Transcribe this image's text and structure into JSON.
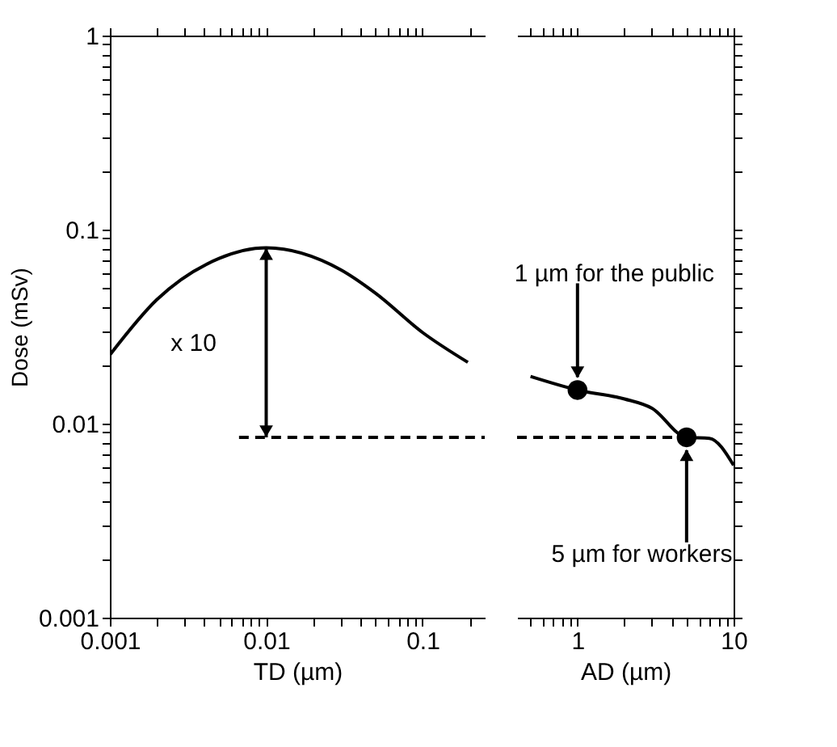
{
  "chart_data": [
    {
      "type": "line",
      "xlabel": "TD (µm)",
      "ylabel": "Dose (mSv)",
      "log": "xy",
      "xlim": [
        0.001,
        0.25
      ],
      "ylim": [
        0.001,
        1
      ],
      "xticks": [
        0.001,
        {
          "value": 0.002,
          "label": null
        },
        {
          "value": 0.003,
          "label": null
        },
        {
          "value": 0.004,
          "label": null
        },
        {
          "value": 0.005,
          "label": null
        },
        {
          "value": 0.006,
          "label": null
        },
        {
          "value": 0.007,
          "label": null
        },
        {
          "value": 0.008,
          "label": null
        },
        {
          "value": 0.009,
          "label": null
        },
        0.01,
        {
          "value": 0.02,
          "label": null
        },
        {
          "value": 0.03,
          "label": null
        },
        {
          "value": 0.04,
          "label": null
        },
        {
          "value": 0.05,
          "label": null
        },
        {
          "value": 0.06,
          "label": null
        },
        {
          "value": 0.07,
          "label": null
        },
        {
          "value": 0.08,
          "label": null
        },
        {
          "value": 0.09,
          "label": null
        },
        0.1,
        {
          "value": 0.2,
          "label": null
        }
      ],
      "yticks": [
        0.001,
        {
          "value": 0.002,
          "label": null
        },
        {
          "value": 0.003,
          "label": null
        },
        {
          "value": 0.004,
          "label": null
        },
        {
          "value": 0.005,
          "label": null
        },
        {
          "value": 0.006,
          "label": null
        },
        {
          "value": 0.007,
          "label": null
        },
        {
          "value": 0.008,
          "label": null
        },
        {
          "value": 0.009,
          "label": null
        },
        0.01,
        {
          "value": 0.02,
          "label": null
        },
        {
          "value": 0.03,
          "label": null
        },
        {
          "value": 0.04,
          "label": null
        },
        {
          "value": 0.05,
          "label": null
        },
        {
          "value": 0.06,
          "label": null
        },
        {
          "value": 0.07,
          "label": null
        },
        {
          "value": 0.08,
          "label": null
        },
        {
          "value": 0.09,
          "label": null
        },
        0.1,
        {
          "value": 0.2,
          "label": null
        },
        {
          "value": 0.3,
          "label": null
        },
        {
          "value": 0.4,
          "label": null
        },
        {
          "value": 0.5,
          "label": null
        },
        {
          "value": 0.6,
          "label": null
        },
        {
          "value": 0.7,
          "label": null
        },
        {
          "value": 0.8,
          "label": null
        },
        {
          "value": 0.9,
          "label": null
        },
        1
      ],
      "series": [
        {
          "color": "#000000",
          "line_style": "solid",
          "x": [
            0.001,
            0.002,
            0.005,
            0.01,
            0.03,
            0.05,
            0.1,
            0.195
          ],
          "values": [
            0.0226,
            0.0436,
            0.071,
            0.0805,
            0.062,
            0.047,
            0.0295,
            0.0207
          ]
        },
        {
          "color": "#000000",
          "line_style": "dashed",
          "x": [
            0.0067,
            0.25
          ],
          "values": [
            0.0085,
            0.0085
          ]
        }
      ],
      "annotations": [
        "x 10"
      ]
    },
    {
      "type": "line",
      "xlabel": "AD (µm)",
      "log": "xy",
      "tick_labels": "x",
      "xlim": [
        0.41,
        10
      ],
      "ylim": [
        0.001,
        1
      ],
      "xticks": [
        {
          "value": 0.5,
          "label": null
        },
        {
          "value": 0.6,
          "label": null
        },
        {
          "value": 0.7,
          "label": null
        },
        {
          "value": 0.8,
          "label": null
        },
        {
          "value": 0.9,
          "label": null
        },
        1,
        {
          "value": 2,
          "label": null
        },
        {
          "value": 3,
          "label": null
        },
        {
          "value": 4,
          "label": null
        },
        {
          "value": 5,
          "label": null
        },
        {
          "value": 6,
          "label": null
        },
        {
          "value": 7,
          "label": null
        },
        {
          "value": 8,
          "label": null
        },
        {
          "value": 9,
          "label": null
        },
        10
      ],
      "yticks": [
        0.001,
        {
          "value": 0.002,
          "label": null
        },
        {
          "value": 0.003,
          "label": null
        },
        {
          "value": 0.004,
          "label": null
        },
        {
          "value": 0.005,
          "label": null
        },
        {
          "value": 0.006,
          "label": null
        },
        {
          "value": 0.007,
          "label": null
        },
        {
          "value": 0.008,
          "label": null
        },
        {
          "value": 0.009,
          "label": null
        },
        0.01,
        {
          "value": 0.02,
          "label": null
        },
        {
          "value": 0.03,
          "label": null
        },
        {
          "value": 0.04,
          "label": null
        },
        {
          "value": 0.05,
          "label": null
        },
        {
          "value": 0.06,
          "label": null
        },
        {
          "value": 0.07,
          "label": null
        },
        {
          "value": 0.08,
          "label": null
        },
        {
          "value": 0.09,
          "label": null
        },
        0.1,
        {
          "value": 0.2,
          "label": null
        },
        {
          "value": 0.3,
          "label": null
        },
        {
          "value": 0.4,
          "label": null
        },
        {
          "value": 0.5,
          "label": null
        },
        {
          "value": 0.6,
          "label": null
        },
        {
          "value": 0.7,
          "label": null
        },
        {
          "value": 0.8,
          "label": null
        },
        {
          "value": 0.9,
          "label": null
        },
        1
      ],
      "series": [
        {
          "color": "#000000",
          "line_style": "solid",
          "x": [
            0.5,
            1,
            2,
            3,
            5,
            7,
            10
          ],
          "values": [
            0.0175,
            0.0149,
            0.0134,
            0.012,
            0.0085,
            0.0084,
            0.0061
          ]
        },
        {
          "color": "#000000",
          "line_style": "dashed",
          "x": [
            0.41,
            5
          ],
          "values": [
            0.0085,
            0.0085
          ]
        },
        {
          "type": "scatter",
          "color": "#000000",
          "marker": "circle",
          "x": [
            1,
            5
          ],
          "values": [
            0.0149,
            0.0085
          ]
        }
      ],
      "annotations": [
        {
          "text": "1 µm for the public",
          "x": 1,
          "y": 0.0149
        },
        {
          "text": "5 µm for workers",
          "x": 5,
          "y": 0.0085
        }
      ]
    }
  ]
}
